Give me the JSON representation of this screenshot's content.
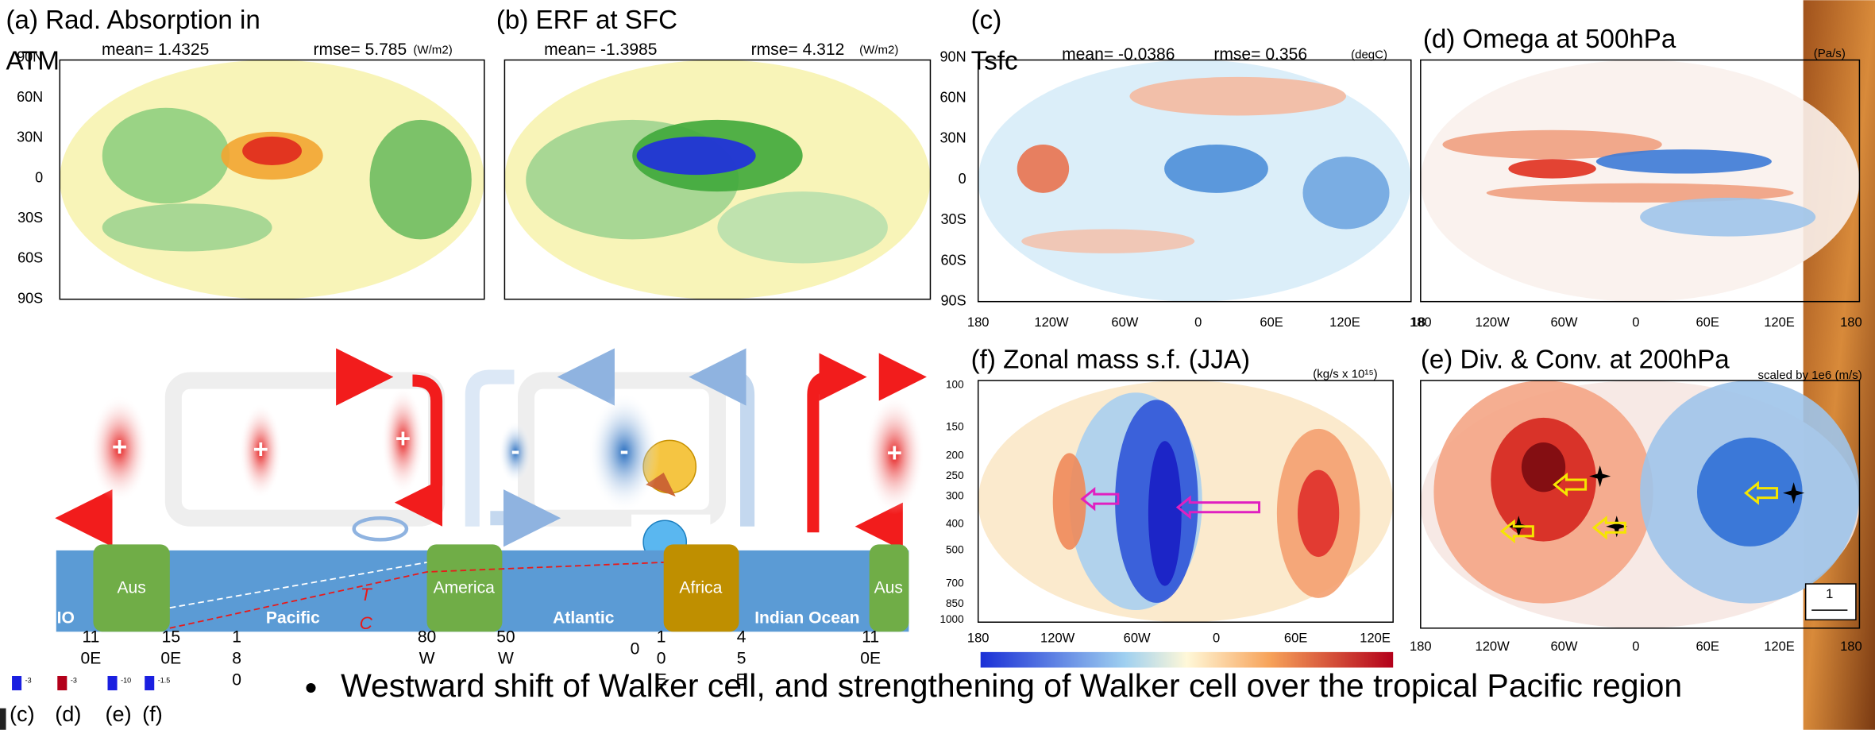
{
  "panels": [
    {
      "title": [
        "(a) Rad. Absorption in",
        "ATM"
      ],
      "mean": "mean=  1.4325",
      "rmse": "rmse=  5.785",
      "unit": "(W/m2)",
      "yticks": [
        "90N",
        "60N",
        "30N",
        "0",
        "30S",
        "60S",
        "90S"
      ]
    },
    {
      "title": [
        "(b) ERF at SFC"
      ],
      "mean": "mean= -1.3985",
      "rmse": "rmse=  4.312",
      "unit": "(W/m2)"
    },
    {
      "title": [
        "(c)",
        "Tsfc"
      ],
      "mean": "mean= -0.0386",
      "rmse": "rmse=  0.356",
      "unit": "(degC)",
      "yticks": [
        "90N",
        "60N",
        "30N",
        "0",
        "30S",
        "60S",
        "90S"
      ],
      "xticks": [
        "180",
        "120W",
        "60W",
        "0",
        "60E",
        "120E",
        "18"
      ]
    },
    {
      "title": [
        "(d) Omega at 500hPa"
      ],
      "unit": "(Pa/s)",
      "xticks": [
        "180",
        "120W",
        "60W",
        "0",
        "60E",
        "120E",
        "180"
      ]
    },
    {
      "title": [
        "(f) Zonal mass s.f. (JJA)"
      ],
      "unit": "(kg/s x 10¹⁵)",
      "yticks": [
        "100",
        "150",
        "200",
        "250",
        "300",
        "400",
        "500",
        "700",
        "850",
        "1000"
      ],
      "xticks": [
        "180",
        "120W",
        "60W",
        "0",
        "60E",
        "120E"
      ]
    },
    {
      "title": [
        "(e) Div. & Conv. at 200hPa"
      ],
      "note": "scaled by 1e6 (m/s)",
      "xticks": [
        "180",
        "120W",
        "60W",
        "0",
        "60E",
        "120E",
        "180"
      ],
      "key": "1"
    }
  ],
  "diagram": {
    "continents": [
      "Aus",
      "America",
      "Africa",
      "Aus"
    ],
    "oceans": [
      "IO",
      "Pacific",
      "Atlantic",
      "Indian Ocean"
    ],
    "tc": [
      "T",
      "C"
    ],
    "signs": [
      "+",
      "+",
      "+",
      "-",
      "-",
      "+"
    ],
    "longitudes": [
      [
        "11",
        "0E"
      ],
      [
        "15",
        "0E"
      ],
      [
        "1",
        "8",
        "0"
      ],
      [
        "80",
        "W"
      ],
      [
        "50",
        "W"
      ],
      [
        "0"
      ],
      [
        "1",
        "0",
        "E"
      ],
      [
        "4",
        "5",
        "E"
      ],
      [
        "11",
        "0E"
      ]
    ]
  },
  "legend": {
    "values": [
      "-3",
      "-3",
      "-10",
      "-1.5"
    ],
    "labels": [
      "(c)",
      "(d)",
      "(e)",
      "(f)"
    ]
  },
  "bullet": "Westward shift of Walker cell, and strengthening of Walker cell over the tropical Pacific region"
}
